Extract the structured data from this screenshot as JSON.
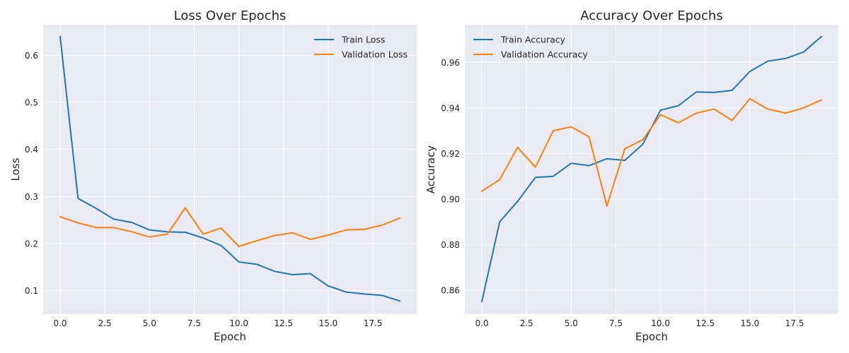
{
  "colors": {
    "panel_bg": "#eaeaf2",
    "grid": "#ffffff",
    "train": "#1f77b4",
    "validation": "#ff7f0e",
    "text": "#262626"
  },
  "chart_data": [
    {
      "type": "line",
      "title": "Loss Over Epochs",
      "xlabel": "Epoch",
      "ylabel": "Loss",
      "xlim": [
        -0.95,
        19.95
      ],
      "ylim": [
        0.05,
        0.665
      ],
      "xticks": [
        0.0,
        2.5,
        5.0,
        7.5,
        10.0,
        12.5,
        15.0,
        17.5
      ],
      "xtick_labels": [
        "0.0",
        "2.5",
        "5.0",
        "7.5",
        "10.0",
        "12.5",
        "15.0",
        "17.5"
      ],
      "yticks": [
        0.1,
        0.2,
        0.3,
        0.4,
        0.5,
        0.6
      ],
      "ytick_labels": [
        "0.1",
        "0.2",
        "0.3",
        "0.4",
        "0.5",
        "0.6"
      ],
      "grid": true,
      "legend": "top-right",
      "x": [
        0,
        1,
        2,
        3,
        4,
        5,
        6,
        7,
        8,
        9,
        10,
        11,
        12,
        13,
        14,
        15,
        16,
        17,
        18,
        19
      ],
      "series": [
        {
          "name": "Train Loss",
          "color": "#1f77b4",
          "values": [
            0.64,
            0.296,
            0.275,
            0.252,
            0.245,
            0.229,
            0.225,
            0.224,
            0.212,
            0.196,
            0.161,
            0.156,
            0.141,
            0.134,
            0.136,
            0.11,
            0.097,
            0.093,
            0.09,
            0.078
          ]
        },
        {
          "name": "Validation Loss",
          "color": "#ff7f0e",
          "values": [
            0.257,
            0.244,
            0.234,
            0.234,
            0.225,
            0.214,
            0.22,
            0.276,
            0.22,
            0.233,
            0.194,
            0.206,
            0.217,
            0.223,
            0.209,
            0.218,
            0.229,
            0.23,
            0.239,
            0.254
          ]
        }
      ]
    },
    {
      "type": "line",
      "title": "Accuracy Over Epochs",
      "xlabel": "Epoch",
      "ylabel": "Accuracy",
      "xlim": [
        -0.95,
        19.95
      ],
      "ylim": [
        0.8495,
        0.9765
      ],
      "xticks": [
        0.0,
        2.5,
        5.0,
        7.5,
        10.0,
        12.5,
        15.0,
        17.5
      ],
      "xtick_labels": [
        "0.0",
        "2.5",
        "5.0",
        "7.5",
        "10.0",
        "12.5",
        "15.0",
        "17.5"
      ],
      "yticks": [
        0.86,
        0.88,
        0.9,
        0.92,
        0.94,
        0.96
      ],
      "ytick_labels": [
        "0.86",
        "0.88",
        "0.90",
        "0.92",
        "0.94",
        "0.96"
      ],
      "grid": true,
      "legend": "top-left",
      "x": [
        0,
        1,
        2,
        3,
        4,
        5,
        6,
        7,
        8,
        9,
        10,
        11,
        12,
        13,
        14,
        15,
        16,
        17,
        18,
        19
      ],
      "series": [
        {
          "name": "Train Accuracy",
          "color": "#1f77b4",
          "values": [
            0.855,
            0.89,
            0.899,
            0.9095,
            0.91,
            0.9157,
            0.9147,
            0.9177,
            0.917,
            0.924,
            0.939,
            0.941,
            0.947,
            0.9468,
            0.9477,
            0.956,
            0.9605,
            0.9617,
            0.9645,
            0.9713
          ]
        },
        {
          "name": "Validation Accuracy",
          "color": "#ff7f0e",
          "values": [
            0.9035,
            0.9085,
            0.9227,
            0.914,
            0.93,
            0.9317,
            0.9273,
            0.897,
            0.922,
            0.926,
            0.937,
            0.9335,
            0.9377,
            0.9395,
            0.9345,
            0.944,
            0.9395,
            0.9377,
            0.94,
            0.9435
          ]
        }
      ]
    }
  ]
}
